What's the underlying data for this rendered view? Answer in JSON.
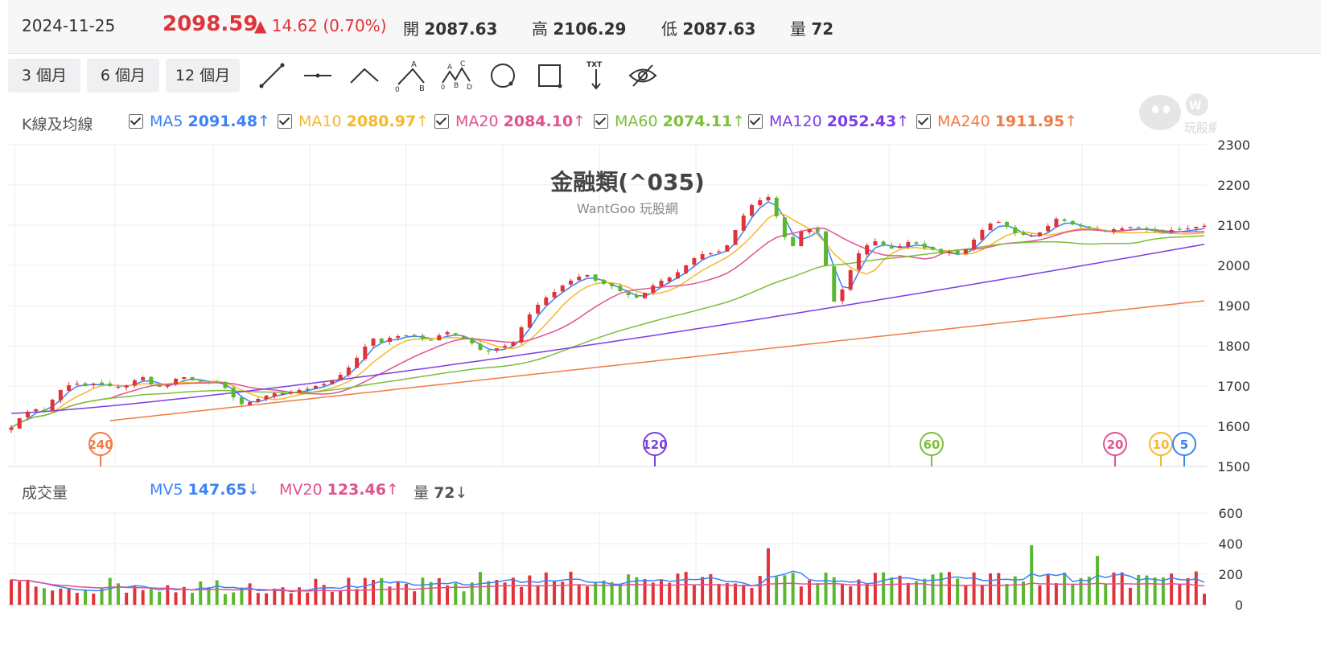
{
  "header": {
    "date": "2024-11-25",
    "price": "2098.59",
    "change": "▲ 14.62 (0.70%)",
    "open_label": "開",
    "open": "2087.63",
    "high_label": "高",
    "high": "2106.29",
    "low_label": "低",
    "low": "2087.63",
    "vol_label": "量",
    "vol": "72"
  },
  "toolbar": {
    "ranges": [
      "3 個月",
      "6 個月",
      "12 個月"
    ],
    "tools": [
      "line-tool-icon",
      "horizontal-line-tool-icon",
      "angle-tool-icon",
      "abc-pattern-tool-icon",
      "abcd-pattern-tool-icon",
      "circle-tool-icon",
      "rectangle-tool-icon",
      "text-tool-icon",
      "hide-drawings-icon"
    ],
    "txt_label": "TXT"
  },
  "ma_legend": {
    "title": "K線及均線",
    "items": [
      {
        "name": "MA5",
        "value": "2091.48",
        "arrow": "↑",
        "color": "#3b82f6"
      },
      {
        "name": "MA10",
        "value": "2080.97",
        "arrow": "↑",
        "color": "#f5b82e"
      },
      {
        "name": "MA20",
        "value": "2084.10",
        "arrow": "↑",
        "color": "#e0528e"
      },
      {
        "name": "MA60",
        "value": "2074.11",
        "arrow": "↑",
        "color": "#7cbf3a"
      },
      {
        "name": "MA120",
        "value": "2052.43",
        "arrow": "↑",
        "color": "#7b3fe4"
      },
      {
        "name": "MA240",
        "value": "1911.95",
        "arrow": "↑",
        "color": "#f07b45"
      }
    ]
  },
  "volume_legend": {
    "title": "成交量",
    "items": [
      {
        "name": "MV5",
        "value": "147.65",
        "arrow": "↓",
        "color": "#3b82f6"
      },
      {
        "name": "MV20",
        "value": "123.46",
        "arrow": "↑",
        "color": "#e0528e"
      },
      {
        "name": "量",
        "value": "72",
        "arrow": "↓",
        "color": "#555555"
      }
    ]
  },
  "watermark_text": "玩股網",
  "chart_data": {
    "type": "candlestick",
    "title": "金融類(^035)",
    "subtitle": "WantGoo 玩股網",
    "price_axis": {
      "ticks": [
        2300,
        2200,
        2100,
        2000,
        1900,
        1800,
        1700,
        1600,
        1500
      ],
      "range": [
        1500,
        2300
      ]
    },
    "volume_axis": {
      "ticks": [
        600,
        400,
        200,
        0
      ],
      "range": [
        0,
        600
      ]
    },
    "price_series": {
      "name": "",
      "values": [
        1597,
        1620,
        1636,
        1642,
        1640,
        1666,
        1690,
        1702,
        1706,
        1700,
        1706,
        1704,
        1700,
        1698,
        1702,
        1714,
        1722,
        1704,
        1698,
        1702,
        1718,
        1722,
        1714,
        1712,
        1710,
        1708,
        1695,
        1672,
        1655,
        1660,
        1668,
        1676,
        1682,
        1682,
        1686,
        1690,
        1693,
        1700,
        1705,
        1715,
        1728,
        1746,
        1770,
        1798,
        1818,
        1808,
        1820,
        1824,
        1826,
        1826,
        1818,
        1815,
        1826,
        1834,
        1826,
        1818,
        1806,
        1790,
        1786,
        1794,
        1800,
        1808,
        1846,
        1878,
        1902,
        1920,
        1934,
        1950,
        1962,
        1972,
        1976,
        1962,
        1954,
        1948,
        1936,
        1926,
        1920,
        1932,
        1950,
        1962,
        1970,
        1983,
        2000,
        2018,
        2028,
        2030,
        2035,
        2050,
        2088,
        2124,
        2150,
        2162,
        2170,
        2122,
        2070,
        2048,
        2084,
        2090,
        2084,
        2000,
        1910,
        1940,
        1988,
        2030,
        2050,
        2060,
        2052,
        2042,
        2048,
        2058,
        2054,
        2044,
        2040,
        2030,
        2034,
        2028,
        2040,
        2064,
        2088,
        2104,
        2108,
        2096,
        2080,
        2076,
        2074,
        2082,
        2098,
        2116,
        2110,
        2102,
        2098,
        2092,
        2088,
        2086,
        2090,
        2092,
        2096,
        2094,
        2090,
        2086,
        2084,
        2088,
        2090,
        2092,
        2096,
        2098.59
      ]
    },
    "ma_series": [
      {
        "name": "MA5",
        "color": "#3b82f6",
        "start": 1594,
        "end": 2091.48
      },
      {
        "name": "MA10",
        "color": "#f5b82e",
        "start": 1608,
        "end": 2080.97
      },
      {
        "name": "MA20",
        "color": "#e0528e",
        "start": 1622,
        "end": 2084.1
      },
      {
        "name": "MA60",
        "color": "#7cbf3a",
        "start": 1628,
        "end": 2074.11
      },
      {
        "name": "MA120",
        "color": "#7b3fe4",
        "start": 1632,
        "end": 2052.43
      },
      {
        "name": "MA240",
        "color": "#f07b45",
        "start": 1587,
        "end": 1911.95
      }
    ],
    "ma_markers": [
      "240",
      "120",
      "60",
      "20",
      "10",
      "5"
    ],
    "volume_series": {
      "name": "量",
      "mv5_end": 147.65,
      "mv20_end": 123.46,
      "last": 72
    }
  }
}
